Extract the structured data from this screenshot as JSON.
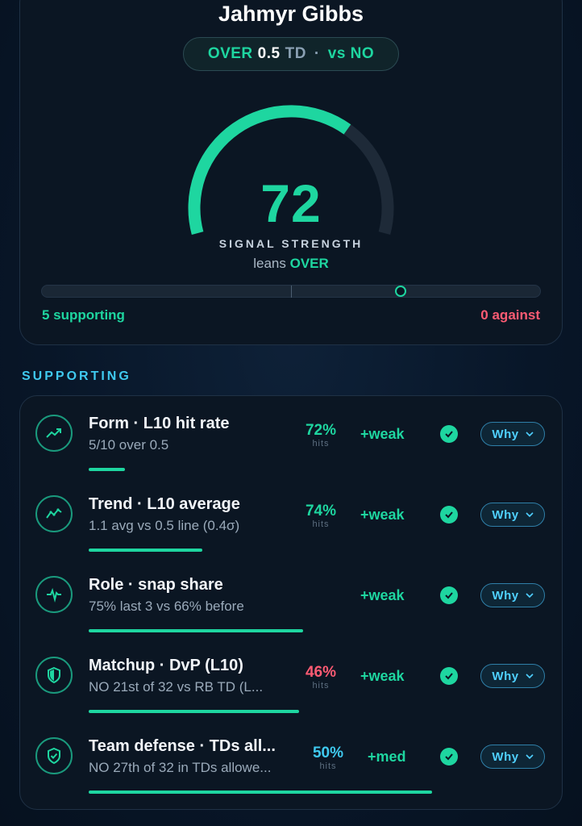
{
  "player": {
    "name": "Jahmyr Gibbs"
  },
  "prop": {
    "side": "OVER",
    "line": "0.5",
    "stat": "TD",
    "separator": "·",
    "opponent": "vs NO"
  },
  "signal": {
    "score": "72",
    "score_value": 72,
    "max": 100,
    "label": "SIGNAL STRENGTH",
    "lean_prefix": "leans",
    "lean_side": "OVER",
    "balance_position": 0.72
  },
  "counts": {
    "supporting": "5 supporting",
    "against": "0 against"
  },
  "section": {
    "heading": "SUPPORTING"
  },
  "colors": {
    "accent_green": "#1ed6a0",
    "accent_red": "#ff5b73",
    "accent_blue": "#3fc9ef"
  },
  "factors": [
    {
      "title": "Form · L10 hit rate",
      "subtitle": "5/10 over 0.5",
      "pct": "72%",
      "pct_color": "#1ed6a0",
      "hits": "hits",
      "impact": "+weak",
      "why": "Why",
      "icon": "trend-up-icon",
      "strength": 0.17
    },
    {
      "title": "Trend · L10 average",
      "subtitle": "1.1 avg vs 0.5 line (0.4σ)",
      "pct": "74%",
      "pct_color": "#1ed6a0",
      "hits": "hits",
      "impact": "+weak",
      "why": "Why",
      "icon": "line-chart-icon",
      "strength": 0.53
    },
    {
      "title": "Role · snap share",
      "subtitle": "75% last 3 vs 66% before",
      "pct": "",
      "pct_color": "#1ed6a0",
      "hits": "",
      "impact": "+weak",
      "why": "Why",
      "icon": "pulse-icon",
      "strength": 1.0
    },
    {
      "title": "Matchup · DvP (L10)",
      "subtitle": "NO 21st of 32 vs RB TD (L...",
      "pct": "46%",
      "pct_color": "#ff5b73",
      "hits": "hits",
      "impact": "+weak",
      "why": "Why",
      "icon": "shield-icon",
      "strength": 0.98
    },
    {
      "title": "Team defense · TDs all...",
      "subtitle": "NO 27th of 32 in TDs allowe...",
      "pct": "50%",
      "pct_color": "#3fc9ef",
      "hits": "hits",
      "impact": "+med",
      "why": "Why",
      "icon": "shield-check-icon",
      "strength": 1.6
    }
  ]
}
